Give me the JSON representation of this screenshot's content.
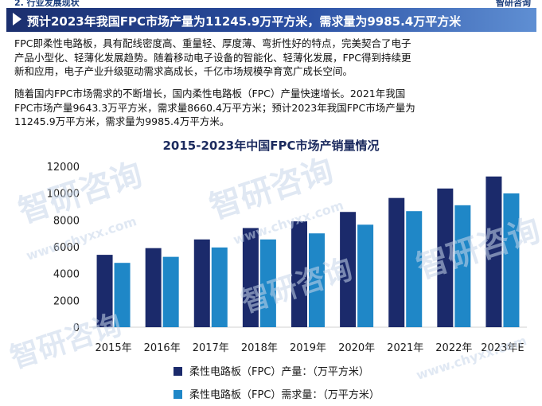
{
  "header": {
    "section": "2. 行业发展现状",
    "brand": "智研咨询",
    "title": "预计2023年我国FPC市场产量为11245.9万平方米，需求量为9985.4万平方米"
  },
  "body": {
    "paragraph1_lines": [
      "FPC即柔性电路板，具有配线密度高、重量轻、厚度薄、弯折性好的特点，完美契合了电子",
      "产品小型化、轻薄化发展趋势。随着移动电子设备的智能化、轻薄化发展，FPC得到持续更",
      "新和应用，电子产业升级驱动需求高成长，千亿市场规模孕育宽广成长空间。"
    ],
    "paragraph2_lines": [
      "随着国内FPC市场需求的不断增长，国内柔性电路板（FPC）产量快速增长。2021年我国",
      "FPC市场产量9643.3万平方米，需求量8660.4万平方米；预计2023年我国FPC市场产量为",
      "11245.9万平方米，需求量为9985.4万平方米。"
    ]
  },
  "watermark": {
    "text": "智研咨询",
    "url": "www.chyxx.com"
  },
  "chart_data": {
    "type": "bar",
    "title": "2015-2023年中国FPC市场产销量情况",
    "categories": [
      "2015年",
      "2016年",
      "2017年",
      "2018年",
      "2019年",
      "2020年",
      "2021年",
      "2022年",
      "2023年E"
    ],
    "series": [
      {
        "name": "柔性电路板（FPC）产量：（万平方米）",
        "color": "#1b2a6b",
        "values": [
          5400,
          5900,
          6550,
          7400,
          7900,
          8600,
          9643.3,
          10350,
          11245.9
        ]
      },
      {
        "name": "柔性电路板（FPC）需求量：（万平方米）",
        "color": "#1f87c7",
        "values": [
          4800,
          5250,
          5950,
          6550,
          7000,
          7650,
          8660.4,
          9100,
          9985.4
        ]
      }
    ],
    "yticks": [
      "0",
      "2000",
      "4000",
      "6000",
      "8000",
      "10000",
      "12000"
    ],
    "ylim": [
      0,
      12000
    ],
    "grid": false,
    "legend_position": "bottom"
  }
}
